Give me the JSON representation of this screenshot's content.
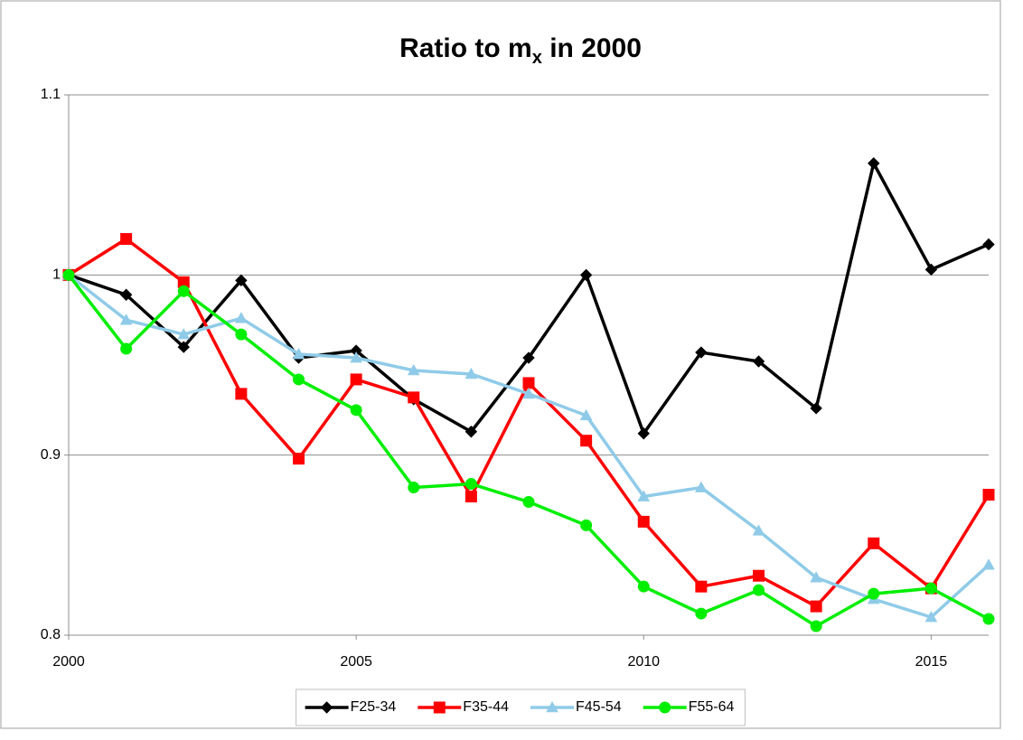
{
  "chart_data": {
    "type": "line",
    "title": [
      "Ratio to m",
      "x",
      " in 2000"
    ],
    "x": [
      2000,
      2001,
      2002,
      2003,
      2004,
      2005,
      2006,
      2007,
      2008,
      2009,
      2010,
      2011,
      2012,
      2013,
      2014,
      2015,
      2016
    ],
    "xlim": [
      2000,
      2016
    ],
    "xticks": [
      2000,
      2005,
      2010,
      2015
    ],
    "ylim": [
      0.8,
      1.1
    ],
    "yticks": [
      0.8,
      0.9,
      1,
      1.1
    ],
    "grid": true,
    "legend": "bottom",
    "series": [
      {
        "name": "F25-34",
        "color": "#000000",
        "marker": "diamond",
        "values": [
          1.0,
          0.989,
          0.96,
          0.997,
          0.954,
          0.958,
          0.931,
          0.913,
          0.954,
          1.0,
          0.912,
          0.957,
          0.952,
          0.926,
          1.062,
          1.003,
          1.017
        ]
      },
      {
        "name": "F35-44",
        "color": "#ff0000",
        "marker": "square",
        "values": [
          1.0,
          1.02,
          0.996,
          0.934,
          0.898,
          0.942,
          0.932,
          0.877,
          0.94,
          0.908,
          0.863,
          0.827,
          0.833,
          0.816,
          0.851,
          0.826,
          0.878
        ]
      },
      {
        "name": "F45-54",
        "color": "#8fcbe8",
        "marker": "triangle",
        "values": [
          1.0,
          0.975,
          0.967,
          0.976,
          0.956,
          0.954,
          0.947,
          0.945,
          0.934,
          0.922,
          0.877,
          0.882,
          0.858,
          0.832,
          0.82,
          0.81,
          0.839
        ]
      },
      {
        "name": "F55-64",
        "color": "#00ee00",
        "marker": "circle",
        "values": [
          1.0,
          0.959,
          0.991,
          0.967,
          0.942,
          0.925,
          0.882,
          0.884,
          0.874,
          0.861,
          0.827,
          0.812,
          0.825,
          0.805,
          0.823,
          0.826,
          0.809
        ]
      }
    ]
  }
}
